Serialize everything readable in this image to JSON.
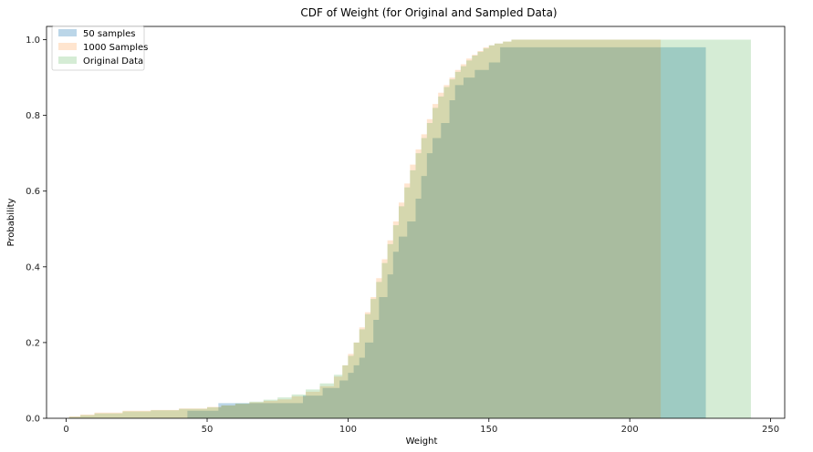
{
  "chart_data": {
    "type": "area",
    "title": "CDF of Weight (for Original and Sampled Data)",
    "xlabel": "Weight",
    "ylabel": "Probability",
    "xlim": [
      -7,
      255
    ],
    "ylim": [
      0,
      1.035
    ],
    "xticks": [
      0,
      50,
      100,
      150,
      200,
      250
    ],
    "yticks": [
      0.0,
      0.2,
      0.4,
      0.6,
      0.8,
      1.0
    ],
    "xtick_labels": [
      "0",
      "50",
      "100",
      "150",
      "200",
      "250"
    ],
    "ytick_labels": [
      "0.0",
      "0.2",
      "0.4",
      "0.6",
      "0.8",
      "1.0"
    ],
    "grid": false,
    "legend_position": "top-left",
    "histtype": "stepfilled cumulative",
    "series": [
      {
        "name": "50 samples",
        "color": "#1f77b4",
        "opacity": 0.3,
        "x": [
          43,
          54,
          84,
          91,
          97,
          100,
          102,
          104,
          106,
          109,
          111,
          114,
          116,
          118,
          121,
          124,
          126,
          128,
          130,
          133,
          136,
          138,
          141,
          145,
          150,
          154,
          211,
          227
        ],
        "y": [
          0.02,
          0.04,
          0.06,
          0.08,
          0.1,
          0.12,
          0.14,
          0.16,
          0.2,
          0.26,
          0.32,
          0.38,
          0.44,
          0.48,
          0.52,
          0.58,
          0.64,
          0.7,
          0.74,
          0.78,
          0.84,
          0.88,
          0.9,
          0.92,
          0.94,
          0.98,
          0.98,
          1.0
        ]
      },
      {
        "name": "1000 Samples",
        "color": "#ff7f0e",
        "opacity": 0.2,
        "x": [
          1,
          5,
          10,
          20,
          30,
          40,
          50,
          55,
          60,
          65,
          70,
          75,
          80,
          85,
          90,
          95,
          98,
          100,
          102,
          104,
          106,
          108,
          110,
          112,
          114,
          116,
          118,
          120,
          122,
          124,
          126,
          128,
          130,
          132,
          134,
          136,
          138,
          140,
          142,
          144,
          146,
          148,
          150,
          152,
          155,
          158,
          211
        ],
        "y": [
          0.005,
          0.01,
          0.015,
          0.02,
          0.022,
          0.026,
          0.03,
          0.034,
          0.038,
          0.042,
          0.046,
          0.05,
          0.058,
          0.07,
          0.085,
          0.11,
          0.14,
          0.17,
          0.2,
          0.24,
          0.28,
          0.32,
          0.37,
          0.42,
          0.47,
          0.52,
          0.57,
          0.62,
          0.67,
          0.71,
          0.75,
          0.79,
          0.83,
          0.86,
          0.88,
          0.9,
          0.92,
          0.935,
          0.95,
          0.96,
          0.97,
          0.98,
          0.985,
          0.99,
          0.995,
          1.0,
          1.0
        ]
      },
      {
        "name": "Original Data",
        "color": "#2ca02c",
        "opacity": 0.2,
        "x": [
          1,
          5,
          10,
          20,
          30,
          40,
          50,
          55,
          60,
          65,
          70,
          75,
          80,
          85,
          90,
          95,
          98,
          100,
          102,
          104,
          106,
          108,
          110,
          112,
          114,
          116,
          118,
          120,
          122,
          124,
          126,
          128,
          130,
          132,
          134,
          136,
          138,
          140,
          142,
          144,
          146,
          148,
          150,
          152,
          155,
          158,
          243
        ],
        "y": [
          0.004,
          0.008,
          0.013,
          0.018,
          0.021,
          0.025,
          0.029,
          0.034,
          0.039,
          0.044,
          0.049,
          0.055,
          0.063,
          0.076,
          0.092,
          0.115,
          0.14,
          0.165,
          0.2,
          0.235,
          0.275,
          0.315,
          0.36,
          0.41,
          0.46,
          0.51,
          0.56,
          0.61,
          0.655,
          0.7,
          0.74,
          0.78,
          0.82,
          0.85,
          0.875,
          0.895,
          0.915,
          0.93,
          0.945,
          0.958,
          0.968,
          0.977,
          0.985,
          0.99,
          0.995,
          1.0,
          1.0
        ]
      }
    ]
  }
}
